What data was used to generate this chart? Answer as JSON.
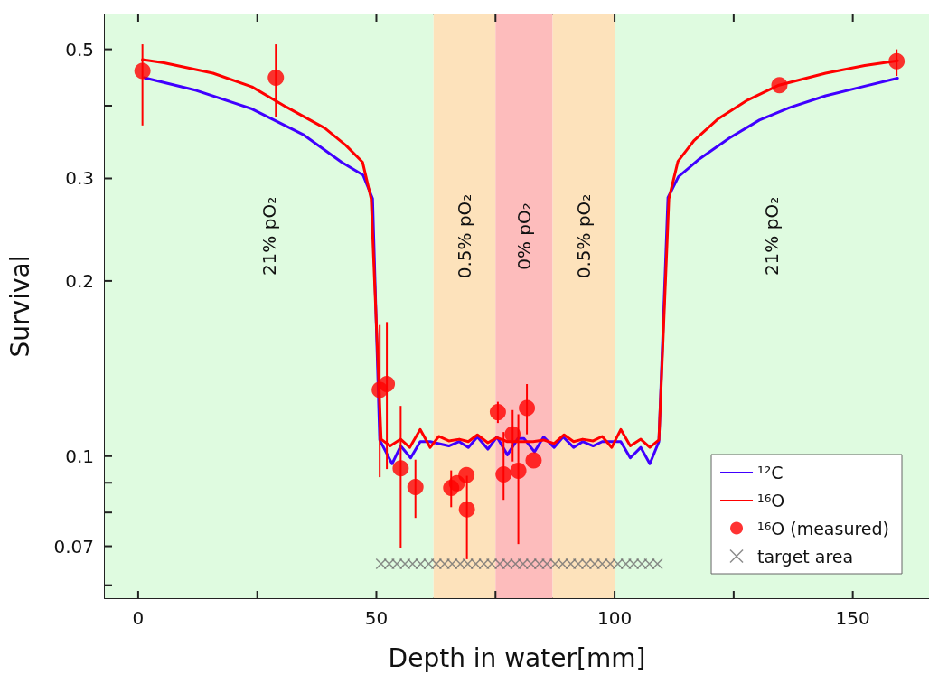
{
  "chart_data": {
    "type": "line",
    "xlabel": "Depth in water[mm]",
    "ylabel": "Survival",
    "xlim": [
      -7,
      166
    ],
    "xticks": [
      0,
      {
        "value": 25,
        "label": null
      },
      50,
      {
        "value": 75,
        "label": null
      },
      100,
      {
        "value": 125,
        "label": null
      },
      150
    ],
    "ylim": [
      0.057,
      0.574
    ],
    "log": "y",
    "yticks": [
      0.5,
      {
        "value": 0.4,
        "label": null
      },
      0.3,
      0.2,
      0.1,
      {
        "value": 0.09,
        "label": null
      },
      {
        "value": 0.08,
        "label": null
      },
      0.07,
      {
        "value": 0.06,
        "label": null
      }
    ],
    "grid": false,
    "legend": "bottom right",
    "bands": [
      {
        "axis": "x",
        "from": -7,
        "to": 62,
        "label": "21% pO₂",
        "color": "#dffbe0"
      },
      {
        "axis": "x",
        "from": 62,
        "to": 75,
        "label": "0.5% pO₂",
        "color": "#fde2bb"
      },
      {
        "axis": "x",
        "from": 75,
        "to": 87,
        "label": "0% pO₂",
        "color": "#fdbcbc"
      },
      {
        "axis": "x",
        "from": 87,
        "to": 100,
        "label": "0.5% pO₂",
        "color": "#fde2bb"
      },
      {
        "axis": "x",
        "from": 100,
        "to": 166,
        "label": "21% pO₂",
        "color": "#dffbe0"
      }
    ],
    "series": [
      {
        "name": "¹²C",
        "color": "#4000ff",
        "marker": "none",
        "line_style": "solid",
        "x": [
          1.3,
          12.2,
          23.9,
          34.6,
          42.7,
          47.2,
          49.2,
          50.7,
          53.3,
          55.1,
          57.2,
          59.2,
          61.3,
          65.2,
          67.4,
          69.3,
          71.2,
          73.4,
          75.3,
          77.5,
          79.7,
          81.0,
          83.2,
          85.1,
          87.3,
          89.2,
          91.4,
          93.3,
          95.5,
          97.4,
          99.6,
          101.3,
          103.3,
          105.5,
          107.4,
          109.3,
          111.2,
          113.4,
          117.8,
          124.1,
          130.4,
          136.7,
          144.3,
          151.9,
          159.4
        ],
        "values": [
          0.447,
          0.425,
          0.395,
          0.357,
          0.32,
          0.304,
          0.277,
          0.1066,
          0.097,
          0.1041,
          0.0993,
          0.1059,
          0.1059,
          0.1041,
          0.1059,
          0.1035,
          0.1079,
          0.1028,
          0.1079,
          0.1005,
          0.1072,
          0.1072,
          0.1017,
          0.1079,
          0.1035,
          0.1079,
          0.1035,
          0.1059,
          0.1041,
          0.1059,
          0.1059,
          0.1059,
          0.0993,
          0.1035,
          0.097,
          0.1059,
          0.278,
          0.302,
          0.324,
          0.352,
          0.378,
          0.397,
          0.416,
          0.431,
          0.446
        ]
      },
      {
        "name": "¹⁶O",
        "color": "#ff0000",
        "marker": "none",
        "line_style": "solid",
        "x": [
          0.9,
          5.4,
          15.7,
          23.9,
          31.1,
          39.2,
          43.6,
          47.1,
          48.9,
          51.0,
          52.9,
          55.1,
          57.0,
          59.2,
          61.3,
          63.1,
          65.2,
          67.4,
          69.3,
          71.2,
          73.4,
          75.3,
          77.5,
          80.0,
          82.9,
          85.1,
          87.3,
          89.4,
          91.4,
          93.3,
          95.5,
          97.4,
          99.4,
          101.3,
          103.3,
          105.5,
          107.4,
          109.3,
          111.4,
          113.3,
          116.6,
          121.6,
          127.9,
          134.5,
          144.3,
          152.5,
          159.4
        ],
        "values": [
          0.48,
          0.474,
          0.455,
          0.431,
          0.398,
          0.366,
          0.342,
          0.32,
          0.277,
          0.1069,
          0.1041,
          0.1069,
          0.1035,
          0.1111,
          0.1035,
          0.1081,
          0.1062,
          0.1069,
          0.1059,
          0.1088,
          0.1054,
          0.1076,
          0.1059,
          0.1059,
          0.1059,
          0.1066,
          0.1051,
          0.1088,
          0.1059,
          0.1069,
          0.1062,
          0.1081,
          0.1035,
          0.1111,
          0.1041,
          0.1069,
          0.1035,
          0.1066,
          0.277,
          0.321,
          0.348,
          0.379,
          0.409,
          0.434,
          0.455,
          0.469,
          0.478
        ]
      },
      {
        "name": "¹⁶O (measured)",
        "type": "scatter",
        "color": "#ff0000",
        "marker": "circle",
        "x": [
          0.9,
          28.9,
          50.7,
          52.2,
          55.1,
          58.2,
          65.7,
          66.9,
          68.9,
          69.0,
          75.5,
          76.7,
          78.6,
          79.8,
          81.6,
          83.0,
          134.6,
          159.2
        ],
        "values": [
          0.459,
          0.447,
          0.13,
          0.133,
          0.0953,
          0.0885,
          0.0882,
          0.0898,
          0.0928,
          0.081,
          0.119,
          0.093,
          0.109,
          0.0944,
          0.121,
          0.0983,
          0.434,
          0.477
        ],
        "errors": [
          [
            0.37,
            0.51
          ],
          [
            0.383,
            0.51
          ],
          [
            0.092,
            0.168
          ],
          [
            0.095,
            0.17
          ],
          [
            0.0694,
            0.122
          ],
          [
            0.0783,
            0.0986
          ],
          [
            0.0817,
            0.0945
          ],
          null,
          null,
          [
            0.0665,
            0.0925
          ],
          [
            0.114,
            0.124
          ],
          [
            0.0841,
            0.11
          ],
          [
            0.0979,
            0.12
          ],
          [
            0.0706,
            0.118
          ],
          [
            0.109,
            0.133
          ],
          null,
          null,
          [
            0.45,
            0.5
          ]
        ]
      },
      {
        "name": "target area",
        "type": "scatter",
        "color": "#707070",
        "marker": "cross",
        "x": [
          51,
          52.7,
          54.3,
          56,
          57.6,
          59.3,
          61,
          62.6,
          64.3,
          65.9,
          67.6,
          69.2,
          70.9,
          72.6,
          74.2,
          75.9,
          77.5,
          79.2,
          80.8,
          82.5,
          84.2,
          85.8,
          87.5,
          89.1,
          90.8,
          92.4,
          94.1,
          95.8,
          97.4,
          99.1,
          100.7,
          102.4,
          104,
          105.7,
          107.3,
          109
        ],
        "values": [
          0.0653,
          0.0653,
          0.0653,
          0.0653,
          0.0653,
          0.0653,
          0.0653,
          0.0653,
          0.0653,
          0.0653,
          0.0653,
          0.0653,
          0.0653,
          0.0653,
          0.0653,
          0.0653,
          0.0653,
          0.0653,
          0.0653,
          0.0653,
          0.0653,
          0.0653,
          0.0653,
          0.0653,
          0.0653,
          0.0653,
          0.0653,
          0.0653,
          0.0653,
          0.0653,
          0.0653,
          0.0653,
          0.0653,
          0.0653,
          0.0653,
          0.0653
        ]
      }
    ]
  }
}
